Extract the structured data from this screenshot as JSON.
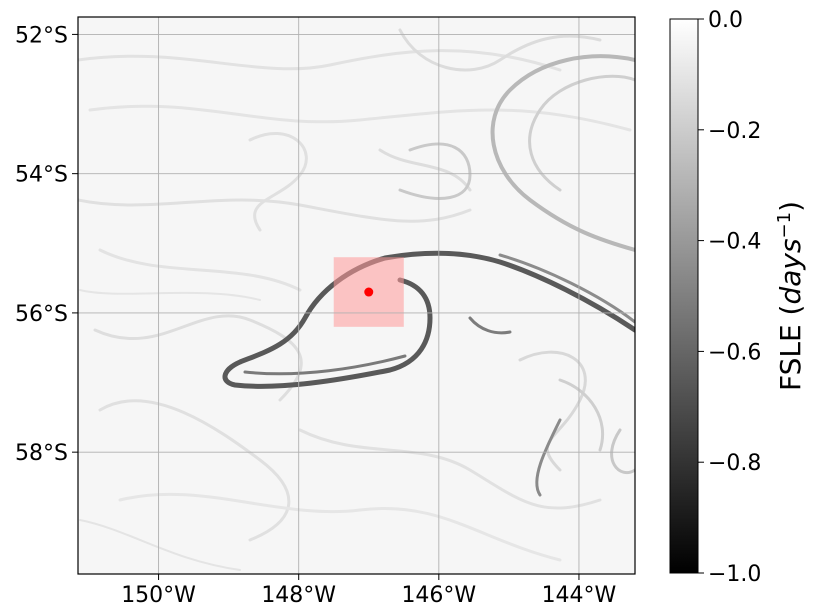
{
  "map": {
    "lat_labels": [
      "52°S",
      "54°S",
      "56°S",
      "58°S"
    ],
    "lon_labels": [
      "150°W",
      "148°W",
      "146°W",
      "144°W"
    ],
    "lat_values": [
      -52,
      -54,
      -56,
      -58
    ],
    "lon_values": [
      -150,
      -148,
      -146,
      -144
    ],
    "lon_range": [
      -151.15,
      -143.2
    ],
    "lat_range": [
      -59.75,
      -51.75
    ],
    "grid": true,
    "highlight_box": {
      "lon": [
        -147.5,
        -146.5
      ],
      "lat": [
        -56.2,
        -55.2
      ],
      "color": "#ff9999"
    },
    "marker": {
      "lon": -147.0,
      "lat": -55.7,
      "color": "#ff0000"
    }
  },
  "colorbar": {
    "label_prefix": "FSLE (",
    "label_var": "days",
    "label_sup": "−1",
    "label_suffix": ")",
    "tick_labels": [
      "0.0",
      "−0.2",
      "−0.4",
      "−0.6",
      "−0.8",
      "−1.0"
    ],
    "tick_values": [
      0.0,
      -0.2,
      -0.4,
      -0.6,
      -0.8,
      -1.0
    ],
    "range": [
      -1.0,
      0.0
    ],
    "colormap": "gray"
  }
}
